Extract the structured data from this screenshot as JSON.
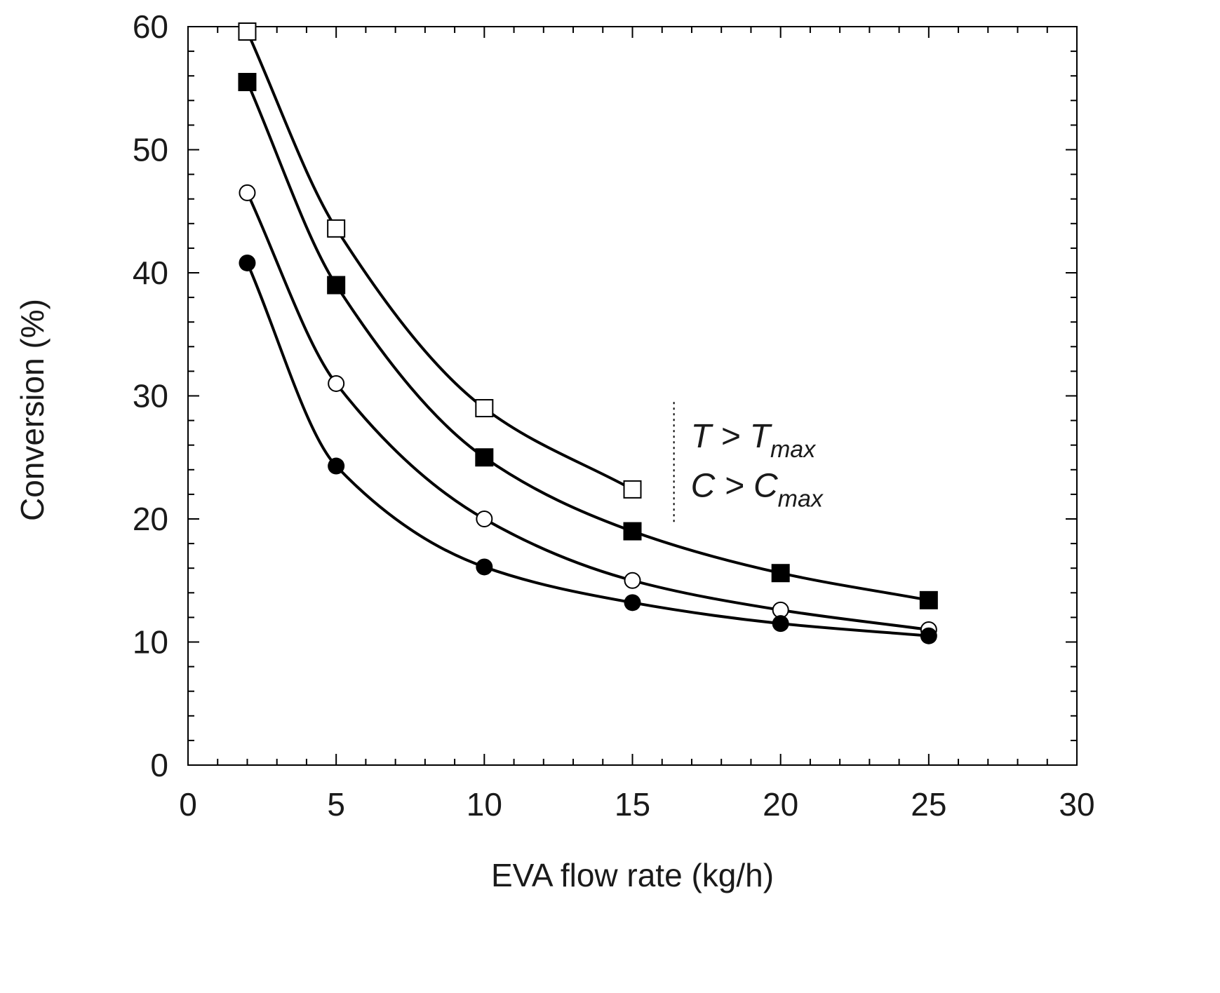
{
  "chart_data": {
    "type": "line",
    "title": "",
    "xlabel": "EVA flow rate (kg/h)",
    "ylabel": "Conversion (%)",
    "xlim": [
      0,
      30
    ],
    "ylim": [
      0,
      60
    ],
    "x_ticks": [
      "0",
      "5",
      "10",
      "15",
      "20",
      "25",
      "30"
    ],
    "y_ticks": [
      "0",
      "10",
      "20",
      "30",
      "40",
      "50",
      "60"
    ],
    "grid": false,
    "legend": "none",
    "series": [
      {
        "marker": "open-square",
        "x": [
          2,
          5,
          10,
          15
        ],
        "y": [
          59.6,
          43.6,
          29,
          22.4
        ]
      },
      {
        "marker": "filled-square",
        "x": [
          2,
          5,
          10,
          15,
          20,
          25
        ],
        "y": [
          55.5,
          39,
          25,
          19,
          15.6,
          13.4
        ]
      },
      {
        "marker": "open-circle",
        "x": [
          2,
          5,
          10,
          15,
          20,
          25
        ],
        "y": [
          46.5,
          31,
          20,
          15,
          12.6,
          11
        ]
      },
      {
        "marker": "filled-circle",
        "x": [
          2,
          5,
          10,
          15,
          20,
          25
        ],
        "y": [
          40.8,
          24.3,
          16.1,
          13.2,
          11.5,
          10.5
        ]
      }
    ],
    "annotation": {
      "boundary_x": 16.4,
      "boundary_y_range": [
        19.5,
        29.5
      ],
      "line1_main": "T > T",
      "line1_sub": "max",
      "line2_main": "C > C",
      "line2_sub": "max"
    },
    "colors": {
      "ink": "#000000",
      "text": "#1a1a1a",
      "background": "#ffffff"
    }
  }
}
